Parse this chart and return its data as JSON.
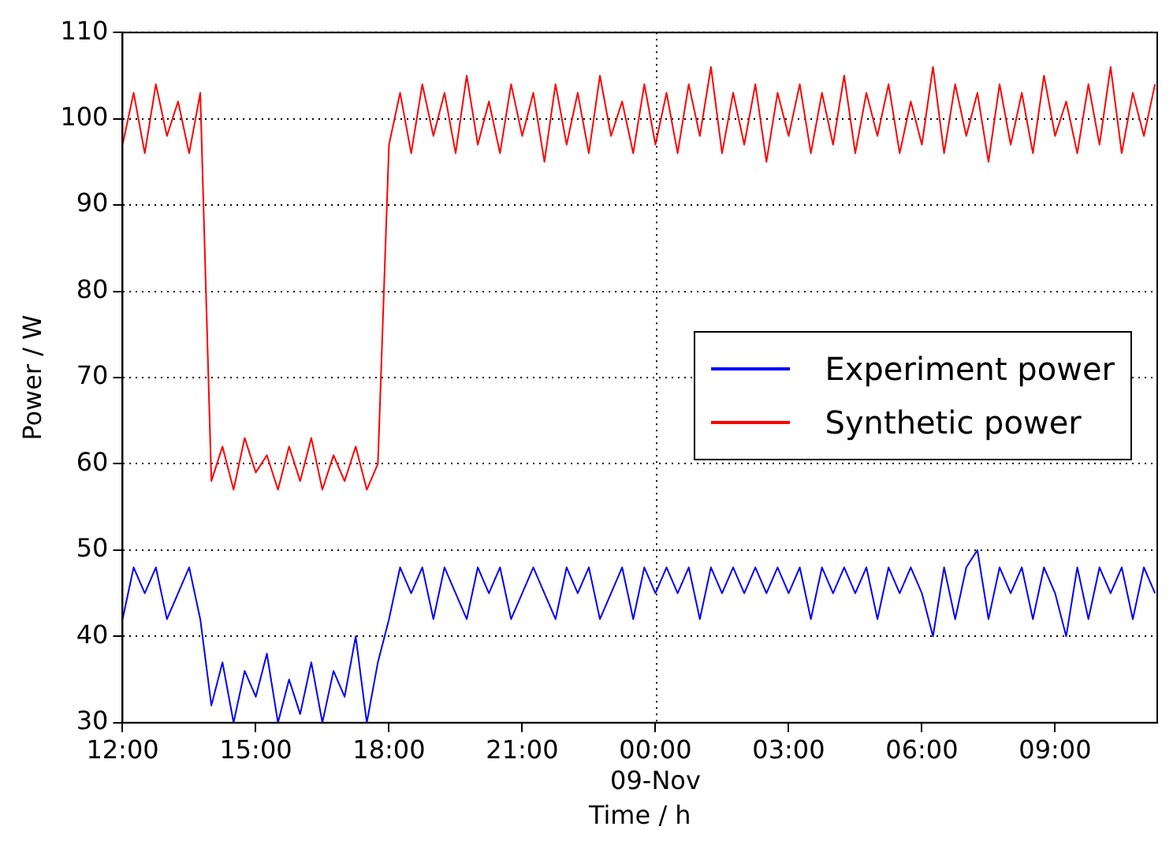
{
  "chart_data": {
    "type": "line",
    "xlabel": "Time / h",
    "ylabel": "Power / W",
    "x": [
      "--11-08T12:00",
      "--11-08T12:15",
      "--11-08T12:30",
      "--11-08T12:45",
      "--11-08T13:00",
      "--11-08T13:15",
      "--11-08T13:30",
      "--11-08T13:45",
      "--11-08T14:00",
      "--11-08T14:15",
      "--11-08T14:30",
      "--11-08T14:45",
      "--11-08T15:00",
      "--11-08T15:15",
      "--11-08T15:30",
      "--11-08T15:45",
      "--11-08T16:00",
      "--11-08T16:15",
      "--11-08T16:30",
      "--11-08T16:45",
      "--11-08T17:00",
      "--11-08T17:15",
      "--11-08T17:30",
      "--11-08T17:45",
      "--11-08T18:00",
      "--11-08T18:15",
      "--11-08T18:30",
      "--11-08T18:45",
      "--11-08T19:00",
      "--11-08T19:15",
      "--11-08T19:30",
      "--11-08T19:45",
      "--11-08T20:00",
      "--11-08T20:15",
      "--11-08T20:30",
      "--11-08T20:45",
      "--11-08T21:00",
      "--11-08T21:15",
      "--11-08T21:30",
      "--11-08T21:45",
      "--11-08T22:00",
      "--11-08T22:15",
      "--11-08T22:30",
      "--11-08T22:45",
      "--11-08T23:00",
      "--11-08T23:15",
      "--11-08T23:30",
      "--11-08T23:45",
      "--11-09T00:00",
      "--11-09T00:15",
      "--11-09T00:30",
      "--11-09T00:45",
      "--11-09T01:00",
      "--11-09T01:15",
      "--11-09T01:30",
      "--11-09T01:45",
      "--11-09T02:00",
      "--11-09T02:15",
      "--11-09T02:30",
      "--11-09T02:45",
      "--11-09T03:00",
      "--11-09T03:15",
      "--11-09T03:30",
      "--11-09T03:45",
      "--11-09T04:00",
      "--11-09T04:15",
      "--11-09T04:30",
      "--11-09T04:45",
      "--11-09T05:00",
      "--11-09T05:15",
      "--11-09T05:30",
      "--11-09T05:45",
      "--11-09T06:00",
      "--11-09T06:15",
      "--11-09T06:30",
      "--11-09T06:45",
      "--11-09T07:00",
      "--11-09T07:15",
      "--11-09T07:30",
      "--11-09T07:45",
      "--11-09T08:00",
      "--11-09T08:15",
      "--11-09T08:30",
      "--11-09T08:45",
      "--11-09T09:00",
      "--11-09T09:15",
      "--11-09T09:30",
      "--11-09T09:45",
      "--11-09T10:00",
      "--11-09T10:15",
      "--11-09T10:30",
      "--11-09T10:45",
      "--11-09T11:00",
      "--11-09T11:15"
    ],
    "series": [
      {
        "name": "Experiment power",
        "color": "#0000ff",
        "values": [
          42,
          48,
          45,
          48,
          42,
          45,
          48,
          42,
          32,
          37,
          30,
          36,
          33,
          38,
          30,
          35,
          31,
          37,
          30,
          36,
          33,
          40,
          30,
          37,
          42,
          48,
          45,
          48,
          42,
          48,
          45,
          42,
          48,
          45,
          48,
          42,
          45,
          48,
          45,
          42,
          48,
          45,
          48,
          42,
          45,
          48,
          42,
          48,
          45,
          48,
          45,
          48,
          42,
          48,
          45,
          48,
          45,
          48,
          45,
          48,
          45,
          48,
          42,
          48,
          45,
          48,
          45,
          48,
          42,
          48,
          45,
          48,
          45,
          40,
          48,
          42,
          48,
          50,
          42,
          48,
          45,
          48,
          42,
          48,
          45,
          40,
          48,
          42,
          48,
          45,
          48,
          42,
          48,
          45
        ]
      },
      {
        "name": "Synthetic power",
        "color": "#ff0000",
        "values": [
          97,
          103,
          96,
          104,
          98,
          102,
          96,
          103,
          58,
          62,
          57,
          63,
          59,
          61,
          57,
          62,
          58,
          63,
          57,
          61,
          58,
          62,
          57,
          60,
          97,
          103,
          96,
          104,
          98,
          103,
          96,
          105,
          97,
          102,
          96,
          104,
          98,
          103,
          95,
          104,
          97,
          103,
          96,
          105,
          98,
          102,
          96,
          104,
          97,
          103,
          96,
          104,
          98,
          106,
          96,
          103,
          97,
          104,
          95,
          103,
          98,
          104,
          96,
          103,
          97,
          105,
          96,
          103,
          98,
          104,
          96,
          102,
          97,
          106,
          96,
          104,
          98,
          103,
          95,
          104,
          97,
          103,
          96,
          105,
          98,
          102,
          96,
          104,
          97,
          106,
          96,
          103,
          98,
          104
        ]
      }
    ],
    "xlim": [
      "--11-08T12:00",
      "--11-09T11:18"
    ],
    "xticks": [
      {
        "value": "--11-08T12:00",
        "label": "12:00"
      },
      {
        "value": "--11-08T15:00",
        "label": "15:00"
      },
      {
        "value": "--11-08T18:00",
        "label": "18:00"
      },
      {
        "value": "--11-08T21:00",
        "label": "21:00"
      },
      {
        "value": "--11-09T00:00",
        "label": "00:00\n09-Nov"
      },
      {
        "value": "--11-09T03:00",
        "label": "03:00"
      },
      {
        "value": "--11-09T06:00",
        "label": "06:00"
      },
      {
        "value": "--11-09T09:00",
        "label": "09:00"
      }
    ],
    "ylim": [
      30,
      110
    ],
    "yticks": [
      30,
      40,
      50,
      60,
      70,
      80,
      90,
      100,
      110
    ],
    "grid": "y",
    "ref_lines": [
      {
        "axis": "x",
        "value": "--11-09",
        "color": "#000000",
        "line_style": "dotted"
      }
    ],
    "legend": "right",
    "marker": "none",
    "line_style": "solid"
  }
}
